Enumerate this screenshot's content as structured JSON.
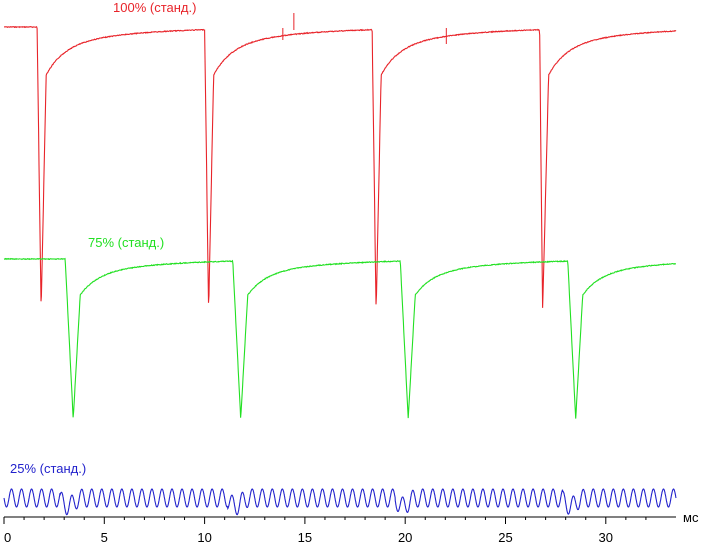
{
  "chart_data": {
    "type": "line",
    "xlabel": "мс",
    "xlim": [
      0,
      33.5
    ],
    "x_ticks": [
      0,
      5,
      10,
      15,
      20,
      25,
      30
    ],
    "grid": false,
    "series": [
      {
        "name": "100% (станд.)",
        "color": "#e8242a",
        "period_ms": 8.35,
        "pulse_starts_ms": [
          1.65,
          10.0,
          18.35,
          26.7
        ],
        "pulse_bottoms_ms": [
          1.85,
          10.2,
          18.55,
          26.85
        ],
        "recovery_ms": [
          2.1,
          10.45,
          18.8,
          27.15
        ],
        "spikes_ms": [
          14.45,
          13.9,
          22.05
        ],
        "shape": "sharp drop to minimum, then slow exponential recovery to baseline"
      },
      {
        "name": "75% (станд.)",
        "color": "#22e022",
        "period_ms": 8.35,
        "pulse_starts_ms": [
          3.05,
          11.4,
          19.75,
          28.1
        ],
        "pulse_bottoms_ms": [
          3.45,
          11.8,
          20.15,
          28.5
        ],
        "recovery_ms": [
          3.8,
          12.15,
          20.5,
          28.85
        ],
        "shape": "sharp drop to minimum, then slow exponential recovery to baseline"
      },
      {
        "name": "25% (станд.)",
        "color": "#2222cc",
        "oscillation_period_ms": 0.5,
        "dips_ms": [
          3.2,
          11.55,
          19.9,
          28.25
        ],
        "shape": "fast oscillation with small dips once per PWM period"
      }
    ]
  }
}
